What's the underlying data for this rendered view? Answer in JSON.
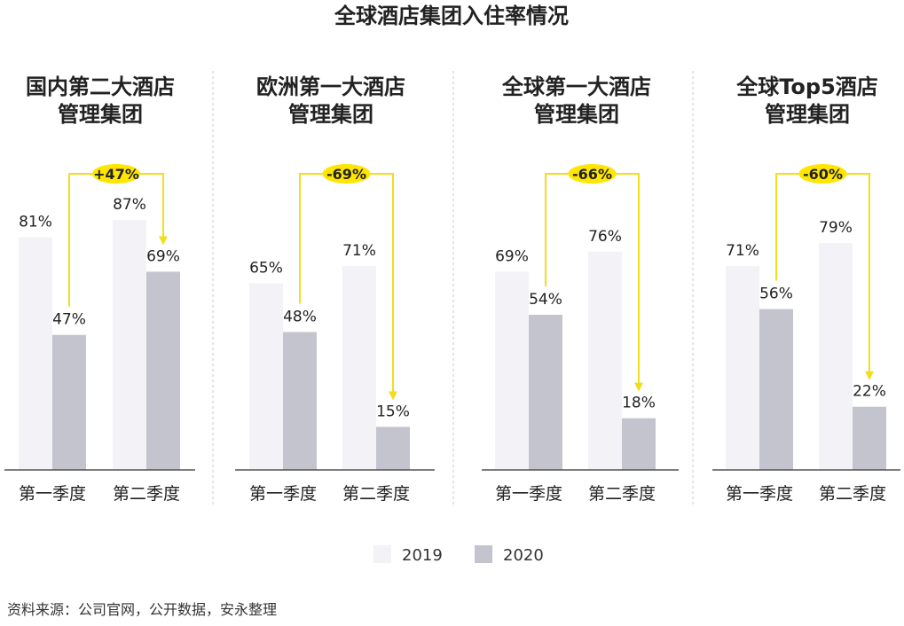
{
  "chart_data": {
    "type": "bar",
    "title": "全球酒店集团入住率情况",
    "categories": [
      "第一季度",
      "第二季度"
    ],
    "legend": {
      "position": "bottom",
      "entries": [
        "2019",
        "2020"
      ]
    },
    "colors": {
      "2019": "#f3f3f7",
      "2020": "#c4c4cf",
      "highlight": "#ffe600",
      "arrow": "#f2de1c"
    },
    "ylim": [
      0,
      100
    ],
    "panels": [
      {
        "title_line1": "国内第二大酒店",
        "title_line2": "管理集团",
        "series": [
          {
            "name": "2019",
            "values": [
              81,
              87
            ]
          },
          {
            "name": "2020",
            "values": [
              47,
              69
            ]
          }
        ],
        "change_label": "+47%"
      },
      {
        "title_line1": "欧洲第一大酒店",
        "title_line2": "管理集团",
        "series": [
          {
            "name": "2019",
            "values": [
              65,
              71
            ]
          },
          {
            "name": "2020",
            "values": [
              48,
              15
            ]
          }
        ],
        "change_label": "-69%"
      },
      {
        "title_line1": "全球第一大酒店",
        "title_line2": "管理集团",
        "series": [
          {
            "name": "2019",
            "values": [
              69,
              76
            ]
          },
          {
            "name": "2020",
            "values": [
              54,
              18
            ]
          }
        ],
        "change_label": "-66%"
      },
      {
        "title_line1": "全球Top5酒店",
        "title_line2": "管理集团",
        "series": [
          {
            "name": "2019",
            "values": [
              71,
              79
            ]
          },
          {
            "name": "2020",
            "values": [
              56,
              22
            ]
          }
        ],
        "change_label": "-60%"
      }
    ]
  },
  "source": "资料来源：公司官网，公开数据，安永整理"
}
